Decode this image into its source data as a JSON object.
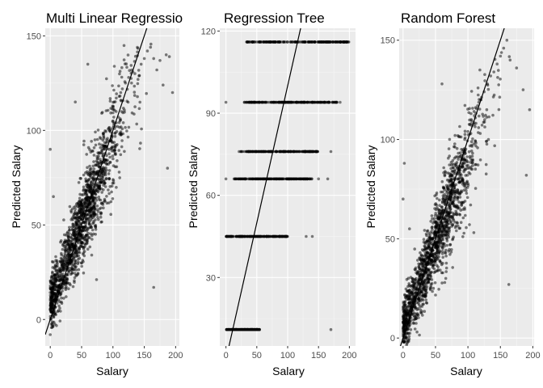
{
  "chart_data": [
    {
      "type": "scatter",
      "title": "Multi Linear Regressio",
      "xlabel": "Salary",
      "ylabel": "Predicted Salary",
      "xlim": [
        -8,
        206
      ],
      "ylim": [
        -14,
        154
      ],
      "xticks": [
        0,
        50,
        100,
        150,
        200
      ],
      "yticks": [
        0,
        50,
        100,
        150
      ],
      "reference_line": {
        "slope": 1,
        "intercept": 0
      },
      "grid": true,
      "point_color": "#000000",
      "point_opacity": 0.5,
      "point_count": 1500,
      "model": {
        "kind": "linear",
        "slope": 0.86,
        "intercept": 8,
        "noise_sd": 13
      },
      "points": [
        [
          0,
          -8
        ],
        [
          3,
          2
        ],
        [
          5,
          10
        ],
        [
          8,
          20
        ],
        [
          10,
          28
        ],
        [
          15,
          22
        ],
        [
          20,
          30
        ],
        [
          25,
          38
        ],
        [
          30,
          42
        ],
        [
          35,
          40
        ],
        [
          40,
          45
        ],
        [
          45,
          48
        ],
        [
          50,
          55
        ],
        [
          55,
          62
        ],
        [
          60,
          70
        ],
        [
          65,
          75
        ],
        [
          70,
          78
        ],
        [
          75,
          85
        ],
        [
          80,
          88
        ],
        [
          85,
          92
        ],
        [
          90,
          95
        ],
        [
          95,
          100
        ],
        [
          100,
          105
        ],
        [
          105,
          110
        ],
        [
          110,
          118
        ],
        [
          115,
          122
        ],
        [
          120,
          125
        ],
        [
          125,
          128
        ],
        [
          130,
          132
        ],
        [
          135,
          130
        ],
        [
          140,
          127
        ],
        [
          145,
          135
        ],
        [
          150,
          138
        ],
        [
          155,
          142
        ],
        [
          160,
          144
        ],
        [
          165,
          138
        ],
        [
          170,
          132
        ],
        [
          175,
          137
        ],
        [
          180,
          124
        ],
        [
          185,
          140
        ],
        [
          190,
          139
        ],
        [
          195,
          120
        ],
        [
          187,
          80
        ],
        [
          165,
          17
        ],
        [
          0,
          90
        ],
        [
          5,
          65
        ],
        [
          40,
          115
        ],
        [
          60,
          135
        ]
      ]
    },
    {
      "type": "scatter",
      "title": "Regression Tree",
      "xlabel": "Salary",
      "ylabel": "Predicted Salary",
      "xlim": [
        -10,
        210
      ],
      "ylim": [
        5,
        121
      ],
      "xticks": [
        0,
        50,
        100,
        150,
        200
      ],
      "yticks": [
        30,
        60,
        90,
        120
      ],
      "reference_line": {
        "slope": 1,
        "intercept": 0
      },
      "grid": true,
      "point_color": "#000000",
      "point_opacity": 0.5,
      "point_count": 1200,
      "levels": [
        {
          "y": 11,
          "xmin": 0,
          "xmax": 55,
          "outliers": [
            170
          ]
        },
        {
          "y": 45,
          "xmin": 0,
          "xmax": 100,
          "outliers": [
            130,
            140
          ]
        },
        {
          "y": 66,
          "xmin": 12,
          "xmax": 140,
          "outliers": [
            0,
            150,
            165
          ]
        },
        {
          "y": 76,
          "xmin": 20,
          "xmax": 150,
          "outliers": [
            170
          ]
        },
        {
          "y": 94,
          "xmin": 25,
          "xmax": 180,
          "outliers": [
            0,
            185
          ]
        },
        {
          "y": 116,
          "xmin": 30,
          "xmax": 200,
          "outliers": [
            35
          ]
        }
      ]
    },
    {
      "type": "scatter",
      "title": "Random Forest",
      "xlabel": "Salary",
      "ylabel": "Predicted Salary",
      "xlim": [
        -6,
        202
      ],
      "ylim": [
        -4,
        156
      ],
      "xticks": [
        0,
        50,
        100,
        150,
        200
      ],
      "yticks": [
        0,
        50,
        100,
        150
      ],
      "reference_line": {
        "slope": 1,
        "intercept": 0
      },
      "grid": true,
      "point_color": "#000000",
      "point_opacity": 0.5,
      "point_count": 1500,
      "model": {
        "kind": "linear",
        "slope": 0.84,
        "intercept": 6,
        "noise_sd": 12
      },
      "points": [
        [
          0,
          5
        ],
        [
          5,
          12
        ],
        [
          8,
          20
        ],
        [
          10,
          18
        ],
        [
          15,
          25
        ],
        [
          20,
          30
        ],
        [
          25,
          35
        ],
        [
          30,
          38
        ],
        [
          35,
          42
        ],
        [
          40,
          46
        ],
        [
          45,
          50
        ],
        [
          50,
          56
        ],
        [
          55,
          60
        ],
        [
          60,
          66
        ],
        [
          65,
          70
        ],
        [
          70,
          75
        ],
        [
          75,
          80
        ],
        [
          80,
          84
        ],
        [
          85,
          90
        ],
        [
          90,
          95
        ],
        [
          95,
          100
        ],
        [
          100,
          104
        ],
        [
          105,
          108
        ],
        [
          110,
          112
        ],
        [
          115,
          117
        ],
        [
          120,
          120
        ],
        [
          125,
          124
        ],
        [
          130,
          128
        ],
        [
          135,
          132
        ],
        [
          140,
          134
        ],
        [
          145,
          138
        ],
        [
          150,
          142
        ],
        [
          155,
          146
        ],
        [
          160,
          150
        ],
        [
          165,
          140
        ],
        [
          175,
          136
        ],
        [
          185,
          125
        ],
        [
          195,
          115
        ],
        [
          190,
          82
        ],
        [
          163,
          27
        ],
        [
          0,
          70
        ],
        [
          2,
          88
        ],
        [
          10,
          55
        ],
        [
          60,
          128
        ]
      ]
    }
  ]
}
